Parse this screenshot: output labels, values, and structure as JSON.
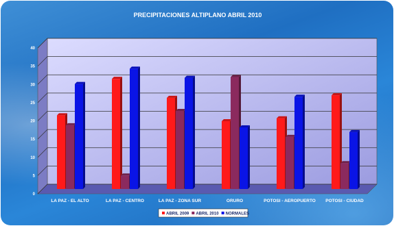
{
  "chart_data": {
    "type": "bar",
    "title": "PRECIPITACIONES ALTIPLANO ABRIL 2010",
    "ylabel": "",
    "xlabel": "",
    "ylim": [
      0,
      40
    ],
    "yticks": [
      0,
      5,
      10,
      15,
      20,
      25,
      30,
      35,
      40
    ],
    "grid": true,
    "legend_position": "bottom",
    "categories": [
      "LA PAZ - EL ALTO",
      "LA PAZ - CENTRO",
      "LA PAZ - ZONA SUR",
      "ORURO",
      "POTOSI - AEROPUERTO",
      "POTOSI - CIUDAD"
    ],
    "series": [
      {
        "name": "ABRIL 2009",
        "color": "#ff1a1a",
        "values": [
          20.2,
          30.2,
          25.0,
          18.6,
          19.4,
          25.7
        ]
      },
      {
        "name": "ABRIL 2010",
        "color": "#8b2a5e",
        "values": [
          17.5,
          3.7,
          21.4,
          30.7,
          14.3,
          7.1
        ]
      },
      {
        "name": "NORMALES",
        "color": "#0a14e6",
        "values": [
          28.8,
          33.0,
          30.5,
          16.9,
          25.3,
          15.6
        ]
      }
    ]
  }
}
